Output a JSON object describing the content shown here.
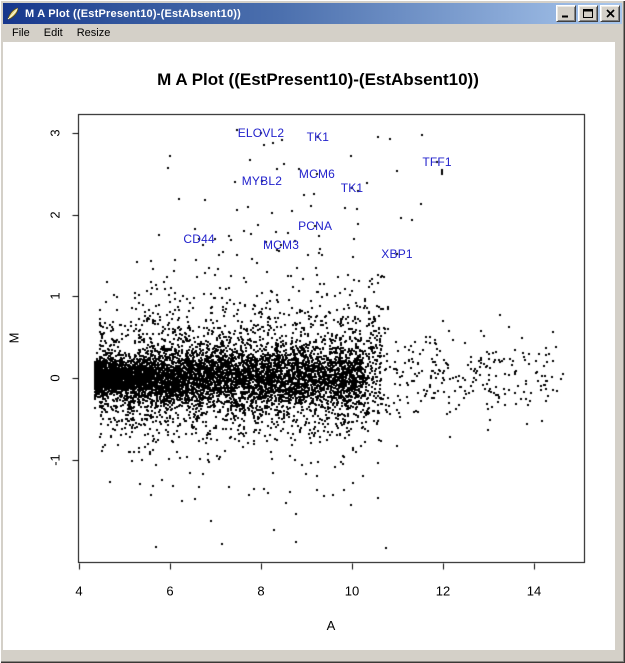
{
  "window": {
    "title": "M A Plot ((EstPresent10)-(EstAbsent10))"
  },
  "menu": {
    "items": [
      "File",
      "Edit",
      "Resize"
    ]
  },
  "colors": {
    "titlebar_gradient_left": "#16368c",
    "titlebar_gradient_right": "#a8c6ec",
    "frame": "#d4d0c8",
    "canvas_bg": "#ffffff",
    "point": "#000000",
    "gene_label": "#2222cc",
    "title_text": "#ffffff"
  },
  "chart_data": {
    "type": "scatter",
    "title": "M A Plot ((EstPresent10)-(EstAbsent10))",
    "xlabel": "A",
    "ylabel": "M",
    "xlim": [
      4,
      15.1
    ],
    "ylim": [
      -2.26,
      3.22
    ],
    "x_ticks": [
      4,
      6,
      8,
      10,
      12,
      14
    ],
    "y_ticks": [
      -1,
      0,
      1,
      2,
      3
    ],
    "grid": false,
    "legend": null,
    "point_color": "#000000",
    "label_color": "#2222cc",
    "labeled_points": [
      {
        "label": "ELOVL2",
        "a": 8.0,
        "m": 3.0
      },
      {
        "label": "TK1",
        "a": 9.25,
        "m": 2.95
      },
      {
        "label": "TFF1",
        "a": 11.87,
        "m": 2.64
      },
      {
        "label": "MCM6",
        "a": 9.23,
        "m": 2.5
      },
      {
        "label": "MYBL2",
        "a": 8.02,
        "m": 2.41
      },
      {
        "label": "TK1",
        "a": 10.0,
        "m": 2.33
      },
      {
        "label": "PCNA",
        "a": 9.19,
        "m": 1.86
      },
      {
        "label": "CD44",
        "a": 6.64,
        "m": 1.7
      },
      {
        "label": "MCM3",
        "a": 8.44,
        "m": 1.63
      },
      {
        "label": "XBP1",
        "a": 10.99,
        "m": 1.52
      }
    ],
    "point_cloud": {
      "seed": 1234567,
      "description": "~8200 probe-set points; dense band at M≈0 pinching at A≈4.4, fanning between A≈5-10, sparse tail to A≈14.6",
      "components": [
        {
          "name": "dense-core",
          "n": 5200,
          "a": {
            "base": 4.35,
            "span": 5.9,
            "pow": 1.55
          },
          "m": {
            "type": "normal",
            "sd0": 0.1,
            "sd1": 0.17,
            "a0": 4.5,
            "a1": 7.0
          }
        },
        {
          "name": "mid-spread",
          "n": 1800,
          "a": {
            "base": 4.45,
            "span": 6.2,
            "pow": 1.25
          },
          "m": {
            "type": "normal",
            "sd": 0.38
          }
        },
        {
          "name": "upper-fan",
          "n": 480,
          "a": {
            "base": 5.2,
            "span": 5.6,
            "pow": 1.0
          },
          "m": {
            "type": "halfup",
            "offset": 0.2,
            "sd": 0.6
          }
        },
        {
          "name": "lower-fan",
          "n": 320,
          "a": {
            "base": 5.0,
            "span": 5.4,
            "pow": 1.0
          },
          "m": {
            "type": "halfdown",
            "offset": 0.2,
            "sd": 0.45
          }
        },
        {
          "name": "right-tail",
          "n": 310,
          "a": {
            "base": 10.2,
            "span": 4.45,
            "pow": 1.3
          },
          "m": {
            "type": "normal",
            "sd": 0.27
          }
        },
        {
          "name": "upper-outliers",
          "n": 40,
          "a": {
            "base": 6.0,
            "span": 6.2,
            "pow": 1.0
          },
          "m": {
            "type": "uniform",
            "min": 1.5,
            "max": 3.05
          }
        },
        {
          "name": "lower-outliers",
          "n": 22,
          "a": {
            "base": 5.4,
            "span": 5.4,
            "pow": 1.0
          },
          "m": {
            "type": "uniform",
            "min": -2.1,
            "max": -1.25
          }
        }
      ]
    }
  }
}
